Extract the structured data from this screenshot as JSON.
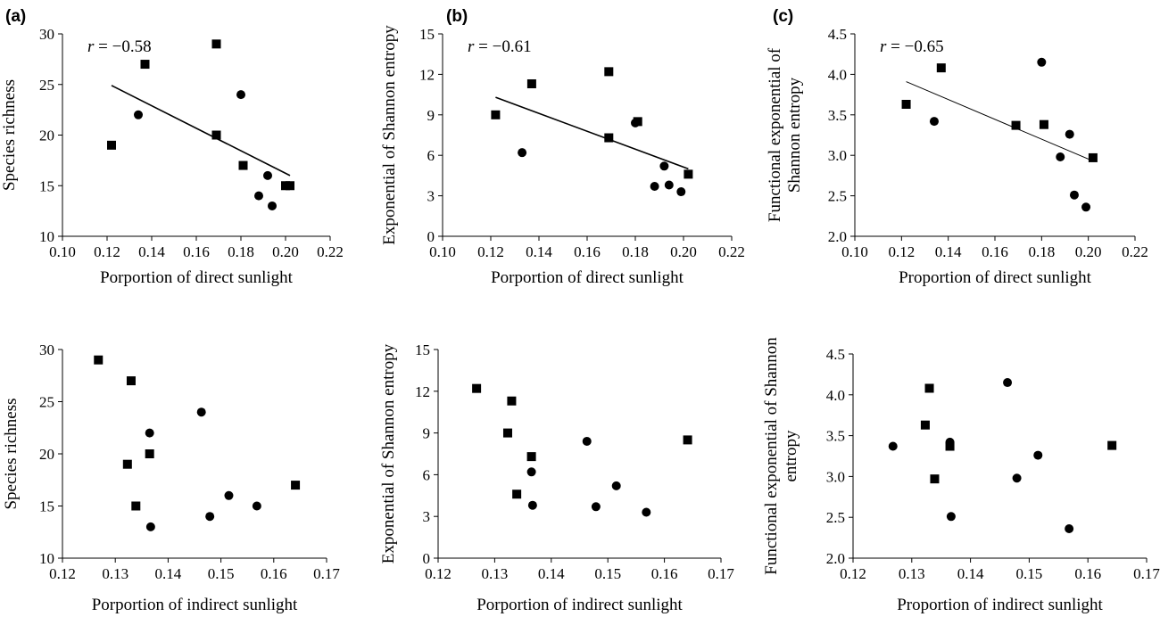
{
  "panel_labels": [
    "(a)",
    "(b)",
    "(c)"
  ],
  "chart_data": [
    {
      "type": "scatter",
      "panel": "(a)",
      "xlabel": "Porportion of direct sunlight",
      "ylabel": "Species richness",
      "xlim": [
        0.1,
        0.22
      ],
      "ylim": [
        10,
        30
      ],
      "xticks": [
        "0.10",
        "0.12",
        "0.14",
        "0.16",
        "0.18",
        "0.20",
        "0.22"
      ],
      "yticks": [
        "10",
        "15",
        "20",
        "25",
        "30"
      ],
      "annotation": {
        "r_symbol": "r",
        "text": " = −0.58"
      },
      "trendline": {
        "x": [
          0.122,
          0.202
        ],
        "y": [
          24.9,
          16.0
        ]
      },
      "series": [
        {
          "marker": "square",
          "points": [
            [
              0.122,
              19
            ],
            [
              0.137,
              27
            ],
            [
              0.169,
              29
            ],
            [
              0.169,
              20
            ],
            [
              0.181,
              17
            ],
            [
              0.2,
              15
            ],
            [
              0.202,
              15
            ]
          ]
        },
        {
          "marker": "circle",
          "points": [
            [
              0.134,
              22
            ],
            [
              0.18,
              24
            ],
            [
              0.188,
              14
            ],
            [
              0.192,
              16
            ],
            [
              0.194,
              13
            ]
          ]
        }
      ]
    },
    {
      "type": "scatter",
      "panel": "(b)",
      "xlabel": "Porportion of direct sunlight",
      "ylabel": "Exponential of Shannon entropy",
      "xlim": [
        0.1,
        0.22
      ],
      "ylim": [
        0,
        15
      ],
      "xticks": [
        "0.10",
        "0.12",
        "0.14",
        "0.16",
        "0.18",
        "0.20",
        "0.22"
      ],
      "yticks": [
        "0",
        "3",
        "6",
        "9",
        "12",
        "15"
      ],
      "annotation": {
        "r_symbol": "r",
        "text": " = −0.61"
      },
      "trendline": {
        "x": [
          0.122,
          0.202
        ],
        "y": [
          10.3,
          5.0
        ]
      },
      "series": [
        {
          "marker": "square",
          "points": [
            [
              0.122,
              9.0
            ],
            [
              0.137,
              11.3
            ],
            [
              0.169,
              12.2
            ],
            [
              0.169,
              7.3
            ],
            [
              0.181,
              8.5
            ],
            [
              0.202,
              4.6
            ]
          ]
        },
        {
          "marker": "circle",
          "points": [
            [
              0.133,
              6.2
            ],
            [
              0.18,
              8.4
            ],
            [
              0.188,
              3.7
            ],
            [
              0.192,
              5.2
            ],
            [
              0.194,
              3.8
            ],
            [
              0.199,
              3.3
            ]
          ]
        }
      ]
    },
    {
      "type": "scatter",
      "panel": "(c)",
      "xlabel": "Proportion of direct sunlight",
      "ylabel": [
        "Functional exponential of",
        "Shannon entropy"
      ],
      "xlim": [
        0.1,
        0.22
      ],
      "ylim": [
        2.0,
        4.5
      ],
      "xticks": [
        "0.10",
        "0.12",
        "0.14",
        "0.16",
        "0.18",
        "0.20",
        "0.22"
      ],
      "yticks": [
        "2.0",
        "2.5",
        "3.0",
        "3.5",
        "4.0",
        "4.5"
      ],
      "annotation": {
        "r_symbol": "r",
        "text": " = −0.65"
      },
      "trendline": {
        "x": [
          0.122,
          0.202
        ],
        "y": [
          3.91,
          2.93
        ]
      },
      "series": [
        {
          "marker": "square",
          "points": [
            [
              0.122,
              3.63
            ],
            [
              0.137,
              4.08
            ],
            [
              0.169,
              3.37
            ],
            [
              0.181,
              3.38
            ],
            [
              0.202,
              2.97
            ]
          ]
        },
        {
          "marker": "circle",
          "points": [
            [
              0.134,
              3.42
            ],
            [
              0.18,
              4.15
            ],
            [
              0.188,
              2.98
            ],
            [
              0.192,
              3.26
            ],
            [
              0.194,
              2.51
            ],
            [
              0.199,
              2.36
            ]
          ]
        }
      ]
    },
    {
      "type": "scatter",
      "panel": "",
      "xlabel": "Porportion of indirect sunlight",
      "ylabel": "Species richness",
      "xlim": [
        0.12,
        0.17
      ],
      "ylim": [
        10,
        30
      ],
      "xticks": [
        "0.12",
        "0.13",
        "0.14",
        "0.15",
        "0.16",
        "0.17"
      ],
      "yticks": [
        "10",
        "15",
        "20",
        "25",
        "30"
      ],
      "series": [
        {
          "marker": "square",
          "points": [
            [
              0.1268,
              29
            ],
            [
              0.133,
              27
            ],
            [
              0.1323,
              19
            ],
            [
              0.1365,
              20
            ],
            [
              0.1339,
              15
            ],
            [
              0.1641,
              17
            ]
          ]
        },
        {
          "marker": "circle",
          "points": [
            [
              0.1365,
              22
            ],
            [
              0.1463,
              24
            ],
            [
              0.1367,
              13
            ],
            [
              0.1479,
              14
            ],
            [
              0.1515,
              16
            ],
            [
              0.1568,
              15
            ]
          ]
        }
      ]
    },
    {
      "type": "scatter",
      "panel": "",
      "xlabel": "Porportion of indirect sunlight",
      "ylabel": "Exponential of Shannon entropy",
      "xlim": [
        0.12,
        0.17
      ],
      "ylim": [
        0,
        15
      ],
      "xticks": [
        "0.12",
        "0.13",
        "0.14",
        "0.15",
        "0.16",
        "0.17"
      ],
      "yticks": [
        "0",
        "3",
        "6",
        "9",
        "12",
        "15"
      ],
      "series": [
        {
          "marker": "square",
          "points": [
            [
              0.1268,
              12.2
            ],
            [
              0.133,
              11.3
            ],
            [
              0.1323,
              9.0
            ],
            [
              0.1365,
              7.3
            ],
            [
              0.1339,
              4.6
            ],
            [
              0.1641,
              8.5
            ]
          ]
        },
        {
          "marker": "circle",
          "points": [
            [
              0.1365,
              6.2
            ],
            [
              0.1463,
              8.4
            ],
            [
              0.1367,
              3.8
            ],
            [
              0.1479,
              3.7
            ],
            [
              0.1515,
              5.2
            ],
            [
              0.1568,
              3.3
            ]
          ]
        }
      ]
    },
    {
      "type": "scatter",
      "panel": "",
      "xlabel": "Proportion of indirect sunlight",
      "ylabel": [
        "Functional exponential of Shannon",
        "entropy"
      ],
      "xlim": [
        0.12,
        0.17
      ],
      "ylim": [
        2.0,
        4.5
      ],
      "xticks": [
        "0.12",
        "0.13",
        "0.14",
        "0.15",
        "0.16",
        "0.17"
      ],
      "yticks": [
        "2.0",
        "2.5",
        "3.0",
        "3.5",
        "4.0",
        "4.5"
      ],
      "series": [
        {
          "marker": "square",
          "points": [
            [
              0.133,
              4.08
            ],
            [
              0.1323,
              3.63
            ],
            [
              0.1365,
              3.37
            ],
            [
              0.1339,
              2.97
            ],
            [
              0.1641,
              3.38
            ]
          ]
        },
        {
          "marker": "circle",
          "points": [
            [
              0.1268,
              3.37
            ],
            [
              0.1365,
              3.42
            ],
            [
              0.1463,
              4.15
            ],
            [
              0.1479,
              2.98
            ],
            [
              0.1515,
              3.26
            ],
            [
              0.1367,
              2.51
            ],
            [
              0.1568,
              2.36
            ]
          ]
        }
      ]
    }
  ]
}
